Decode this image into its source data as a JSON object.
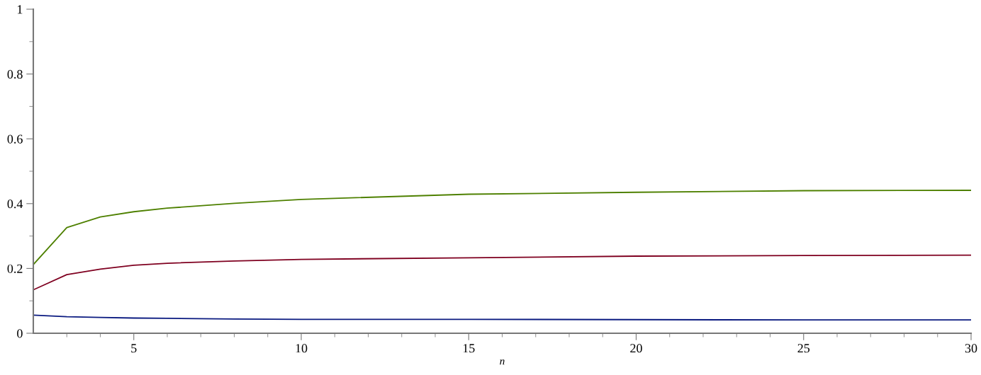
{
  "chart_data": {
    "type": "line",
    "xlabel": "n",
    "x": [
      2,
      3,
      4,
      5,
      6,
      8,
      10,
      15,
      20,
      25,
      30
    ],
    "series": [
      {
        "color": "#4e8000",
        "values": [
          0.212,
          0.326,
          0.359,
          0.375,
          0.386,
          0.401,
          0.413,
          0.429,
          0.435,
          0.44,
          0.441
        ]
      },
      {
        "color": "#7f0020",
        "values": [
          0.134,
          0.181,
          0.198,
          0.21,
          0.216,
          0.223,
          0.228,
          0.233,
          0.238,
          0.24,
          0.241
        ]
      },
      {
        "color": "#0a1a80",
        "values": [
          0.056,
          0.051,
          0.049,
          0.047,
          0.046,
          0.044,
          0.043,
          0.043,
          0.042,
          0.041,
          0.041
        ]
      }
    ],
    "xlim": [
      2,
      30
    ],
    "ylim": [
      0,
      1
    ],
    "xticks": [
      {
        "value": 3,
        "label": null
      },
      {
        "value": 4,
        "label": null
      },
      5,
      {
        "value": 6,
        "label": null
      },
      {
        "value": 7,
        "label": null
      },
      {
        "value": 8,
        "label": null
      },
      {
        "value": 9,
        "label": null
      },
      10,
      {
        "value": 11,
        "label": null
      },
      {
        "value": 12,
        "label": null
      },
      {
        "value": 13,
        "label": null
      },
      {
        "value": 14,
        "label": null
      },
      15,
      {
        "value": 16,
        "label": null
      },
      {
        "value": 17,
        "label": null
      },
      {
        "value": 18,
        "label": null
      },
      {
        "value": 19,
        "label": null
      },
      20,
      {
        "value": 21,
        "label": null
      },
      {
        "value": 22,
        "label": null
      },
      {
        "value": 23,
        "label": null
      },
      {
        "value": 24,
        "label": null
      },
      25,
      {
        "value": 26,
        "label": null
      },
      {
        "value": 27,
        "label": null
      },
      {
        "value": 28,
        "label": null
      },
      {
        "value": 29,
        "label": null
      },
      30
    ],
    "yticks": [
      0,
      {
        "value": 0.1,
        "label": null
      },
      0.2,
      {
        "value": 0.3,
        "label": null
      },
      0.4,
      {
        "value": 0.5,
        "label": null
      },
      0.6,
      {
        "value": 0.7,
        "label": null
      },
      0.8,
      {
        "value": 0.9,
        "label": null
      },
      1
    ],
    "grid": false,
    "legend": false,
    "marker": "none",
    "line_style": "solid"
  }
}
